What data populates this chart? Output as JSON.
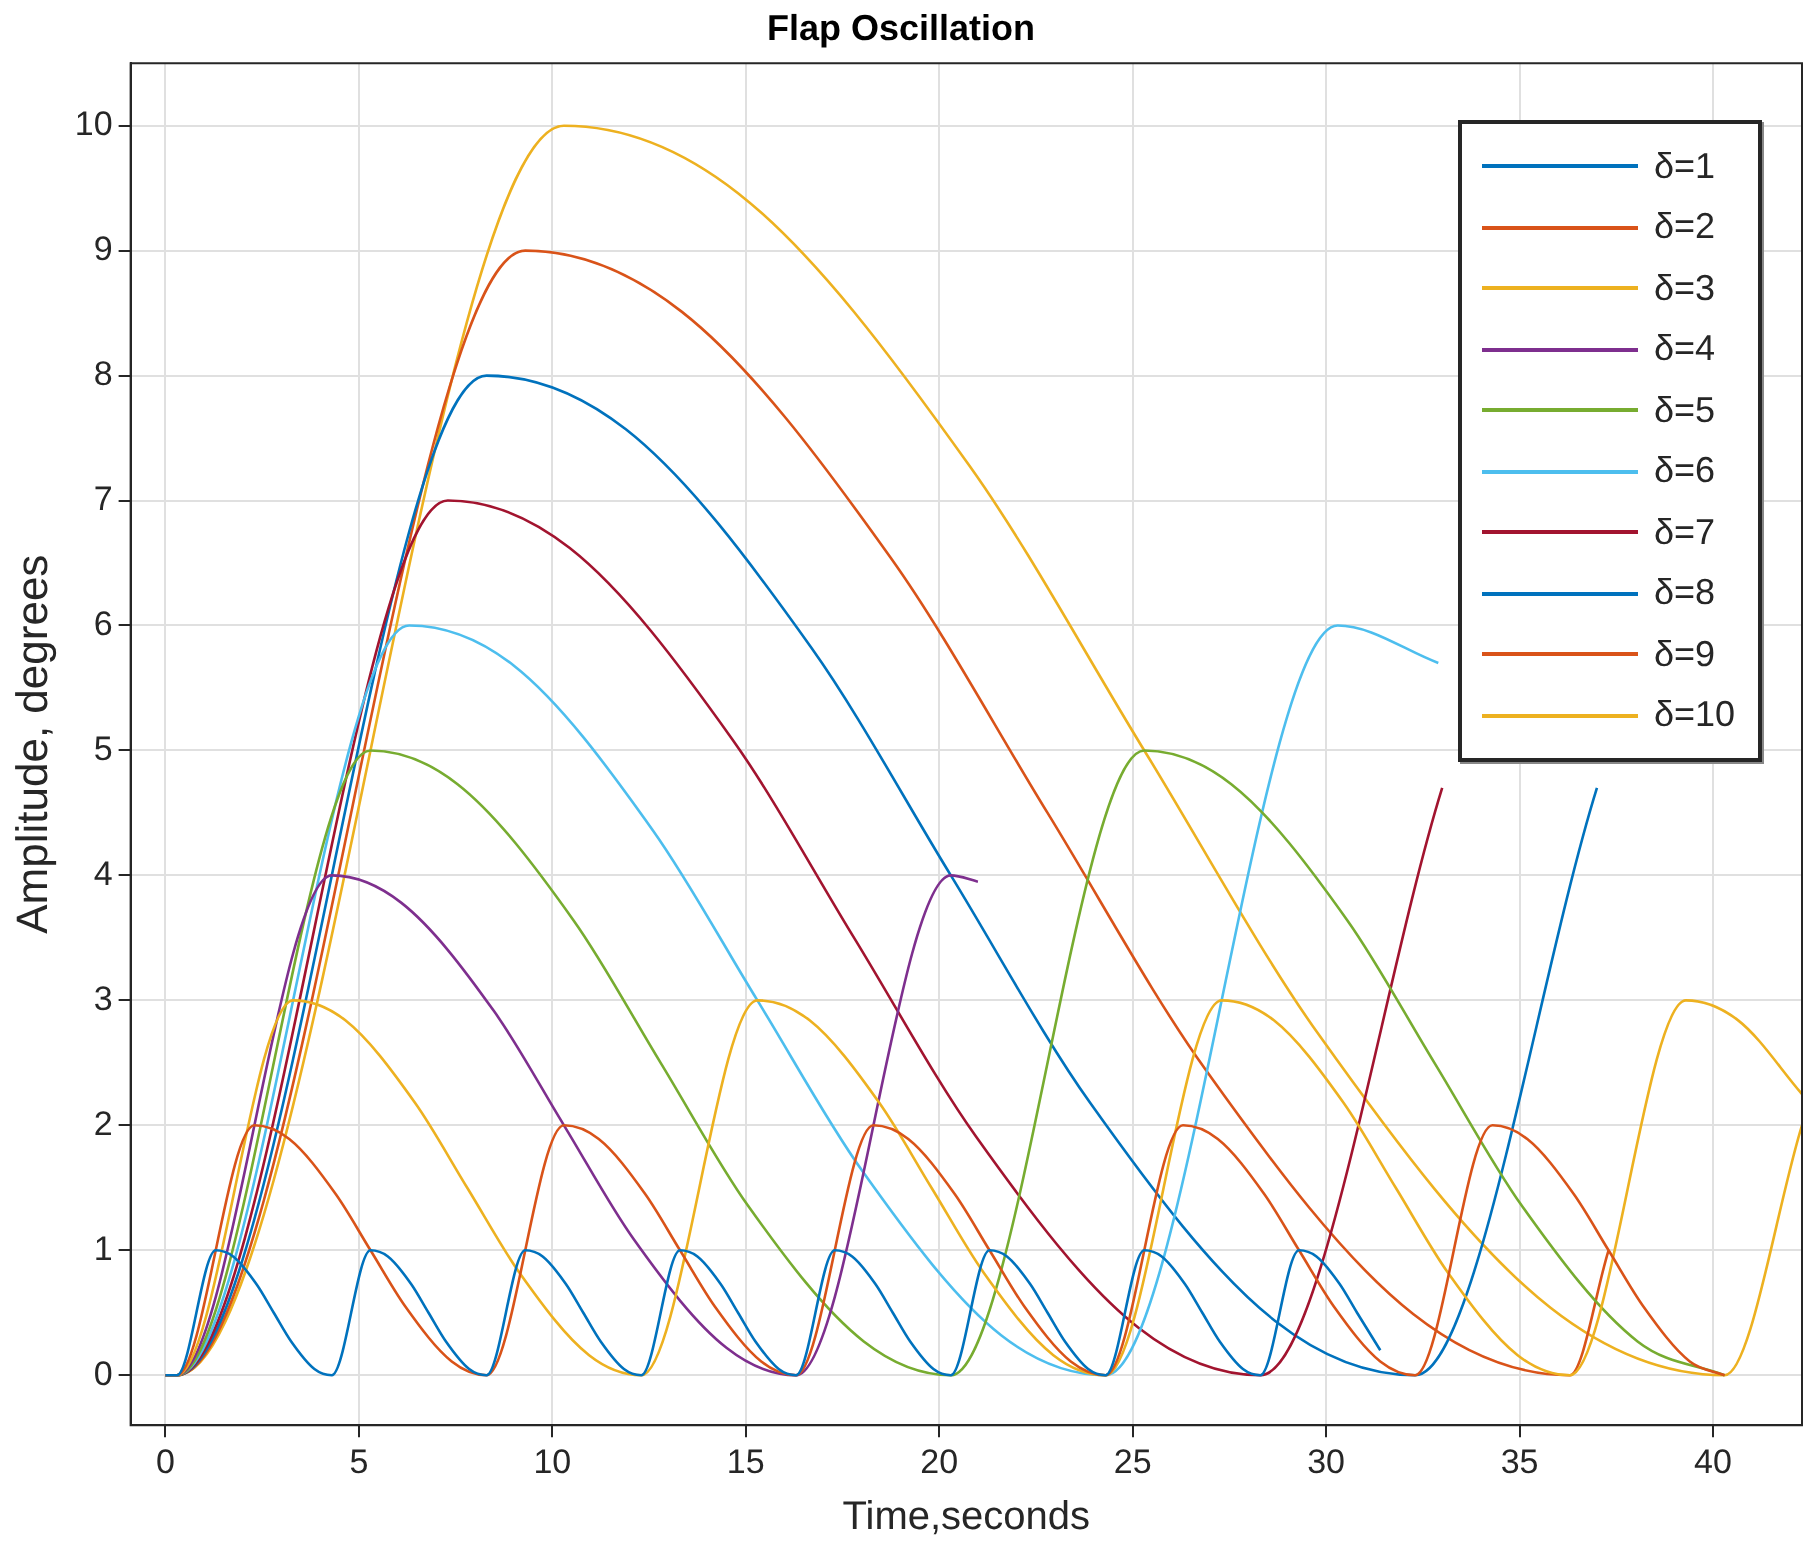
{
  "chart_data": {
    "type": "line",
    "title": "Flap Oscillation",
    "xlabel": "Time,seconds",
    "ylabel": "Amplitude, degrees",
    "xlim": [
      -0.9,
      42.3
    ],
    "ylim": [
      -0.4,
      10.5
    ],
    "xticks": [
      0,
      5,
      10,
      15,
      20,
      25,
      30,
      35,
      40
    ],
    "yticks": [
      0,
      1,
      2,
      3,
      4,
      5,
      6,
      7,
      8,
      9,
      10
    ],
    "grid": true,
    "legend": "top right",
    "marker": "none",
    "line_style": "solid",
    "series": [
      {
        "name": "δ=1",
        "color": "#0072bd",
        "x": [
          0,
          0.3,
          1.3,
          1.75,
          2.35,
          2.8,
          3.25,
          3.85,
          4.3,
          5.3,
          5.75,
          6.35,
          6.8,
          7.25,
          7.85,
          8.3,
          9.3,
          9.75,
          10.35,
          10.8,
          11.25,
          11.85,
          12.3,
          13.3,
          13.75,
          14.35,
          14.8,
          15.25,
          15.85,
          16.3,
          17.3,
          17.75,
          18.35,
          18.8,
          19.25,
          19.85,
          20.3,
          21.3,
          21.75,
          22.35,
          22.8,
          23.25,
          23.85,
          24.3,
          25.3,
          25.75,
          26.35,
          26.8,
          27.25,
          27.85,
          28.3,
          29.3,
          29.75,
          30.35,
          30.8,
          31.4
        ],
        "values": [
          0,
          0,
          1,
          0.95,
          0.73,
          0.5,
          0.27,
          0.05,
          0,
          1,
          0.95,
          0.73,
          0.5,
          0.27,
          0.05,
          0,
          1,
          0.95,
          0.73,
          0.5,
          0.27,
          0.05,
          0,
          1,
          0.95,
          0.73,
          0.5,
          0.27,
          0.05,
          0,
          1,
          0.95,
          0.73,
          0.5,
          0.27,
          0.05,
          0,
          1,
          0.95,
          0.73,
          0.5,
          0.27,
          0.05,
          0,
          1,
          0.95,
          0.73,
          0.5,
          0.27,
          0.05,
          0,
          1,
          0.95,
          0.73,
          0.5,
          0.2
        ]
      },
      {
        "name": "δ=2",
        "color": "#d95319",
        "x": [
          0,
          0.3,
          2.3,
          3.2,
          4.4,
          5.3,
          6.2,
          7.4,
          8.3,
          10.3,
          11.2,
          12.4,
          13.3,
          14.2,
          15.4,
          16.3,
          18.3,
          19.2,
          20.4,
          21.3,
          22.2,
          23.4,
          24.3,
          26.3,
          27.2,
          28.4,
          29.3,
          30.2,
          31.4,
          32.3,
          34.3,
          35.2,
          36.4,
          37.3,
          38.2,
          39.4,
          40.3
        ],
        "values": [
          0,
          0,
          2,
          1.89,
          1.45,
          1,
          0.55,
          0.11,
          0,
          2,
          1.89,
          1.45,
          1,
          0.55,
          0.11,
          0,
          2,
          1.89,
          1.45,
          1,
          0.55,
          0.11,
          0,
          2,
          1.89,
          1.45,
          1,
          0.55,
          0.11,
          0,
          2,
          1.89,
          1.45,
          1,
          0.55,
          0.11,
          0
        ]
      },
      {
        "name": "δ=3",
        "color": "#edb120",
        "x": [
          0,
          0.3,
          3.3,
          4.65,
          6.45,
          7.8,
          9.15,
          10.95,
          12.3,
          15.3,
          16.65,
          18.45,
          19.8,
          21.15,
          22.95,
          24.3,
          27.3,
          28.65,
          30.45,
          31.8,
          33.15,
          34.95,
          36.3,
          39.3,
          40.65,
          42.3
        ],
        "values": [
          0,
          0,
          3,
          2.84,
          2.18,
          1.5,
          0.82,
          0.16,
          0,
          3,
          2.84,
          2.18,
          1.5,
          0.82,
          0.16,
          0,
          3,
          2.84,
          2.18,
          1.5,
          0.82,
          0.16,
          0,
          3,
          2.84,
          2.25
        ]
      },
      {
        "name": "δ=4",
        "color": "#7e2f8e",
        "x": [
          0,
          0.3,
          4.3,
          6.1,
          8.5,
          10.3,
          12.1,
          14.5,
          16.3,
          20.3,
          21
        ],
        "values": [
          0,
          0,
          4,
          3.78,
          2.91,
          2,
          1.09,
          0.22,
          0,
          4,
          3.95
        ]
      },
      {
        "name": "δ=5",
        "color": "#77ac30",
        "x": [
          0,
          0.3,
          5.3,
          7.55,
          10.55,
          12.8,
          15.05,
          18.05,
          20.3,
          25.3,
          27.55,
          30.55,
          32.8,
          35.05,
          38.05,
          40.3
        ],
        "values": [
          0,
          0,
          5,
          4.73,
          3.64,
          2.5,
          1.36,
          0.27,
          0,
          5,
          4.73,
          3.64,
          2.5,
          1.36,
          0.27,
          0
        ]
      },
      {
        "name": "δ=6",
        "color": "#4dbeee",
        "x": [
          0,
          0.3,
          6.3,
          9,
          12.6,
          15.3,
          18,
          21.6,
          24.3,
          30.3,
          32.9
        ],
        "values": [
          0,
          0,
          6,
          5.68,
          4.36,
          3,
          1.64,
          0.32,
          0,
          6,
          5.7
        ]
      },
      {
        "name": "δ=7",
        "color": "#a2142f",
        "x": [
          0,
          0.3,
          7.3,
          10.45,
          14.65,
          17.8,
          20.95,
          25.15,
          28.3,
          33
        ],
        "values": [
          0,
          0,
          7,
          6.62,
          5.09,
          3.5,
          1.91,
          0.38,
          0,
          4.7
        ]
      },
      {
        "name": "δ=8",
        "color": "#0072bd",
        "x": [
          0,
          0.3,
          8.3,
          11.9,
          16.7,
          20.3,
          23.9,
          28.7,
          32.3,
          37
        ],
        "values": [
          0,
          0,
          8,
          7.57,
          5.82,
          4,
          2.18,
          0.43,
          0,
          4.7
        ]
      },
      {
        "name": "δ=9",
        "color": "#d95319",
        "x": [
          0,
          0.3,
          9.3,
          13.35,
          18.75,
          22.8,
          26.85,
          32.25,
          36.3,
          37.3
        ],
        "values": [
          0,
          0,
          9,
          8.51,
          6.54,
          4.5,
          2.46,
          0.49,
          0,
          1
        ]
      },
      {
        "name": "δ=10",
        "color": "#edb120",
        "x": [
          0,
          0.3,
          10.3,
          14.8,
          20.8,
          25.3,
          29.8,
          35.8,
          40.3,
          42.3
        ],
        "values": [
          0,
          0,
          10,
          9.46,
          7.27,
          5,
          2.73,
          0.54,
          0,
          2
        ]
      }
    ]
  }
}
